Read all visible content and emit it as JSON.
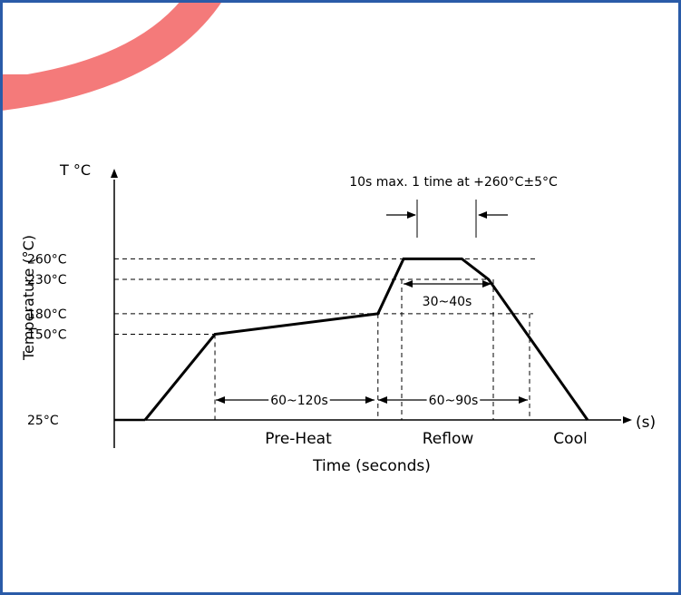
{
  "colors": {
    "frame": "#2a5ba8",
    "arc": "#f47a7a",
    "ink": "#000000"
  },
  "chart_data": {
    "type": "line",
    "title": "",
    "xlabel": "Time (seconds)",
    "ylabel": "Temperature (°C)",
    "y_unit_label": "T °C",
    "x_unit_label": "(s)",
    "yticks": [
      {
        "value": 260,
        "label": "260°C"
      },
      {
        "value": 230,
        "label": "230°C"
      },
      {
        "value": 180,
        "label": "180°C"
      },
      {
        "value": 150,
        "label": "150°C"
      },
      {
        "value": 25,
        "label": "25°C"
      }
    ],
    "profile": {
      "x": [
        0,
        60,
        200,
        222,
        272,
        295,
        380
      ],
      "y": [
        25,
        150,
        180,
        260,
        260,
        230,
        25
      ]
    },
    "x_range": [
      -27,
      442
    ],
    "y_range": [
      25,
      282
    ],
    "phases": [
      "Pre-Heat",
      "Reflow",
      "Cool"
    ],
    "annotations": {
      "peak_note": "10s max. 1 time at +260°C±5°C",
      "above_230": "30~40s",
      "preheat_duration": "60~120s",
      "above_180": "60~90s"
    },
    "grid": false
  }
}
